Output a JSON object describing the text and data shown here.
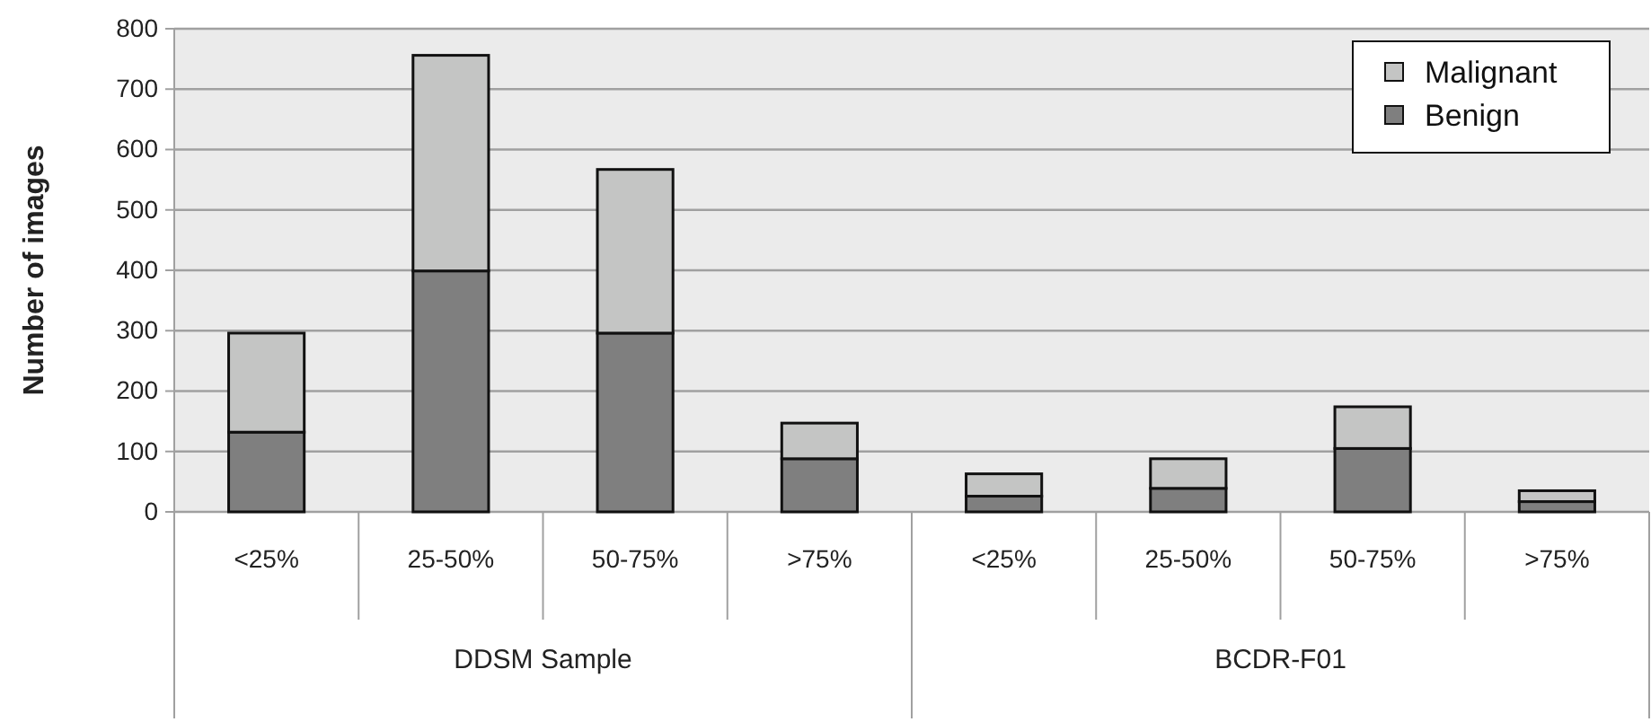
{
  "chart_data": {
    "type": "bar",
    "stacked": true,
    "ylabel": "Number of images",
    "categories": [
      "<25%",
      "25-50%",
      "50-75%",
      ">75%",
      "<25%",
      "25-50%",
      "50-75%",
      ">75%"
    ],
    "series": [
      {
        "name": "Benign",
        "color": "#7f7f7f",
        "values": [
          132,
          399,
          296,
          88,
          26,
          39,
          105,
          17
        ]
      },
      {
        "name": "Malignant",
        "color": "#c4c5c4",
        "values": [
          164,
          357,
          271,
          59,
          37,
          49,
          69,
          18
        ]
      }
    ],
    "ylim": [
      0,
      800
    ],
    "yticks": [
      0,
      100,
      200,
      300,
      400,
      500,
      600,
      700,
      800
    ],
    "grid": "y",
    "legend": "top right",
    "annotations": [
      "DDSM Sample",
      "BCDR-F01"
    ]
  }
}
